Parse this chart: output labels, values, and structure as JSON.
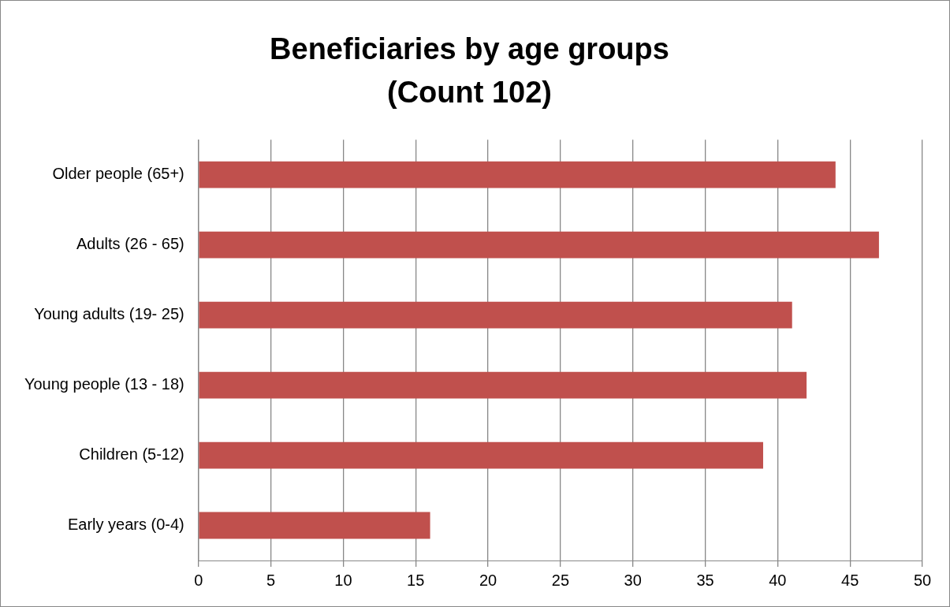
{
  "chart_data": {
    "type": "bar",
    "orientation": "horizontal",
    "title": "Beneficiaries by age groups",
    "subtitle": "(Count 102)",
    "categories": [
      "Older people (65+)",
      "Adults (26 - 65)",
      "Young adults (19- 25)",
      "Young people (13 - 18)",
      "Children (5-12)",
      "Early years (0-4)"
    ],
    "values": [
      44,
      47,
      41,
      42,
      39,
      16
    ],
    "color": "#c0504d",
    "xlim": [
      0,
      50
    ],
    "xticks": [
      0,
      5,
      10,
      15,
      20,
      25,
      30,
      35,
      40,
      45,
      50
    ],
    "grid": "x",
    "legend": false
  }
}
